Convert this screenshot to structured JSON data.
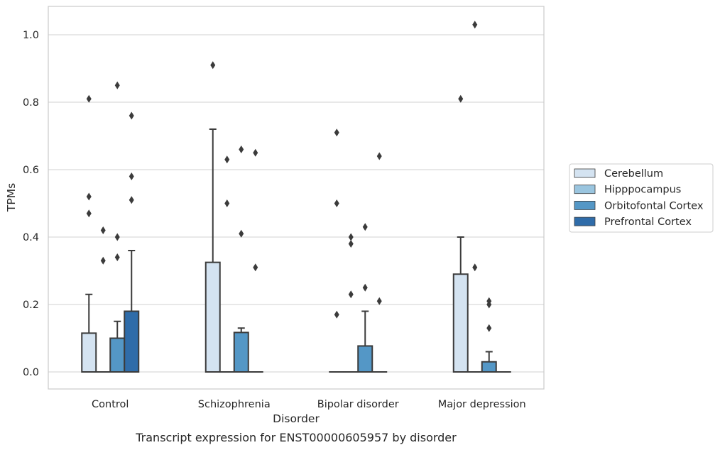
{
  "chart_data": {
    "type": "box",
    "title": "",
    "caption": "Transcript expression for ENST00000605957 by disorder",
    "xlabel": "Disorder",
    "ylabel": "TPMs",
    "ylim": [
      -0.05,
      1.08
    ],
    "yticks": [
      0.0,
      0.2,
      0.4,
      0.6,
      0.8,
      1.0
    ],
    "ytick_labels": [
      "0.0",
      "0.2",
      "0.4",
      "0.6",
      "0.8",
      "1.0"
    ],
    "grid": "horizontal",
    "legend_position": "right",
    "categories": [
      "Control",
      "Schizophrenia",
      "Bipolar disorder",
      "Major depression"
    ],
    "series": [
      {
        "name": "Cerebellum",
        "color": "#d4e3f1",
        "boxes": [
          {
            "q1": 0,
            "median": 0,
            "q3": 0.115,
            "whisker_low": 0,
            "whisker_high": 0.23,
            "outliers": [
              0.81,
              0.52,
              0.47
            ]
          },
          {
            "q1": 0,
            "median": 0,
            "q3": 0.325,
            "whisker_low": 0,
            "whisker_high": 0.72,
            "outliers": [
              0.91
            ]
          },
          {
            "q1": 0,
            "median": 0,
            "q3": 0,
            "whisker_low": 0,
            "whisker_high": 0,
            "outliers": [
              0.71,
              0.5,
              0.17
            ]
          },
          {
            "q1": 0,
            "median": 0,
            "q3": 0.29,
            "whisker_low": 0,
            "whisker_high": 0.4,
            "outliers": [
              0.81
            ]
          }
        ]
      },
      {
        "name": "Hipppocampus",
        "color": "#9ac5df",
        "boxes": [
          {
            "q1": 0,
            "median": 0,
            "q3": 0,
            "whisker_low": 0,
            "whisker_high": 0,
            "outliers": [
              0.42,
              0.33
            ]
          },
          {
            "q1": 0,
            "median": 0,
            "q3": 0,
            "whisker_low": 0,
            "whisker_high": 0,
            "outliers": [
              0.63,
              0.5
            ]
          },
          {
            "q1": 0,
            "median": 0,
            "q3": 0,
            "whisker_low": 0,
            "whisker_high": 0,
            "outliers": [
              0.4,
              0.38,
              0.23
            ]
          },
          {
            "q1": 0,
            "median": 0,
            "q3": 0,
            "whisker_low": 0,
            "whisker_high": 0,
            "outliers": [
              1.03,
              0.31
            ]
          }
        ]
      },
      {
        "name": "Orbitofontal Cortex",
        "color": "#5497c6",
        "boxes": [
          {
            "q1": 0,
            "median": 0,
            "q3": 0.1,
            "whisker_low": 0,
            "whisker_high": 0.15,
            "outliers": [
              0.85,
              0.4,
              0.34
            ]
          },
          {
            "q1": 0,
            "median": 0,
            "q3": 0.117,
            "whisker_low": 0,
            "whisker_high": 0.13,
            "outliers": [
              0.66,
              0.41
            ]
          },
          {
            "q1": 0,
            "median": 0,
            "q3": 0.077,
            "whisker_low": 0,
            "whisker_high": 0.18,
            "outliers": [
              0.43,
              0.25
            ]
          },
          {
            "q1": 0,
            "median": 0,
            "q3": 0.03,
            "whisker_low": 0,
            "whisker_high": 0.06,
            "outliers": [
              0.21,
              0.2,
              0.13
            ]
          }
        ]
      },
      {
        "name": "Prefrontal Cortex",
        "color": "#2f6ca9",
        "boxes": [
          {
            "q1": 0,
            "median": 0,
            "q3": 0.18,
            "whisker_low": 0,
            "whisker_high": 0.36,
            "outliers": [
              0.76,
              0.58,
              0.51
            ]
          },
          {
            "q1": 0,
            "median": 0,
            "q3": 0,
            "whisker_low": 0,
            "whisker_high": 0,
            "outliers": [
              0.65,
              0.31
            ]
          },
          {
            "q1": 0,
            "median": 0,
            "q3": 0,
            "whisker_low": 0,
            "whisker_high": 0,
            "outliers": [
              0.64,
              0.21
            ]
          },
          {
            "q1": 0,
            "median": 0,
            "q3": 0,
            "whisker_low": 0,
            "whisker_high": 0,
            "outliers": []
          }
        ]
      }
    ]
  }
}
